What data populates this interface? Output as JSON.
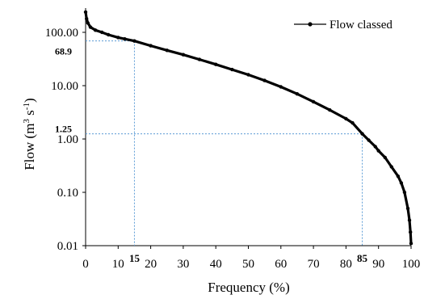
{
  "chart_data": {
    "type": "line",
    "title": "",
    "xlabel": "Frequency (%)",
    "ylabel_main": "Flow (m",
    "ylabel_sup3": "3",
    "ylabel_s": " s",
    "ylabel_supneg1": "-1",
    "ylabel_close": ")",
    "xlim": [
      0,
      100
    ],
    "ylim": [
      0.01,
      300
    ],
    "yscale": "log",
    "x_ticks": [
      {
        "v": 0,
        "label": "0"
      },
      {
        "v": 10,
        "label": "10"
      },
      {
        "v": 20,
        "label": "20"
      },
      {
        "v": 30,
        "label": "30"
      },
      {
        "v": 40,
        "label": "40"
      },
      {
        "v": 50,
        "label": "50"
      },
      {
        "v": 60,
        "label": "60"
      },
      {
        "v": 70,
        "label": "70"
      },
      {
        "v": 80,
        "label": "80"
      },
      {
        "v": 90,
        "label": "90"
      },
      {
        "v": 100,
        "label": "100"
      }
    ],
    "y_ticks": [
      {
        "v": 100,
        "label": "100.00"
      },
      {
        "v": 10,
        "label": "10.00"
      },
      {
        "v": 1,
        "label": "1.00"
      },
      {
        "v": 0.1,
        "label": "0.10"
      },
      {
        "v": 0.01,
        "label": "0.01"
      }
    ],
    "legend": {
      "label": "Flow classed",
      "position": "top-right"
    },
    "series": [
      {
        "name": "Flow classed",
        "color": "#000000",
        "points": [
          [
            0,
            240
          ],
          [
            0.3,
            180
          ],
          [
            0.7,
            150
          ],
          [
            1.5,
            125
          ],
          [
            3,
            110
          ],
          [
            5,
            100
          ],
          [
            7,
            90
          ],
          [
            10,
            80
          ],
          [
            12,
            75
          ],
          [
            15,
            68.9
          ],
          [
            20,
            56
          ],
          [
            25,
            46
          ],
          [
            30,
            38
          ],
          [
            35,
            31
          ],
          [
            40,
            25
          ],
          [
            45,
            20
          ],
          [
            50,
            16
          ],
          [
            55,
            12.5
          ],
          [
            60,
            9.5
          ],
          [
            65,
            7
          ],
          [
            70,
            5
          ],
          [
            75,
            3.5
          ],
          [
            80,
            2.4
          ],
          [
            82,
            2
          ],
          [
            85,
            1.25
          ],
          [
            87,
            0.95
          ],
          [
            89,
            0.72
          ],
          [
            90,
            0.6
          ],
          [
            92,
            0.45
          ],
          [
            94,
            0.3
          ],
          [
            96,
            0.2
          ],
          [
            97,
            0.15
          ],
          [
            98,
            0.1
          ],
          [
            99,
            0.05
          ],
          [
            99.5,
            0.03
          ],
          [
            99.8,
            0.018
          ],
          [
            100,
            0.011
          ]
        ]
      }
    ],
    "annotations": [
      {
        "x": 15,
        "y": 68.9,
        "x_label": "15",
        "y_label": "68.9"
      },
      {
        "x": 85,
        "y": 1.25,
        "x_label": "85",
        "y_label": "1.25"
      }
    ],
    "guide_color": "#5b9bd5",
    "grid": false
  }
}
